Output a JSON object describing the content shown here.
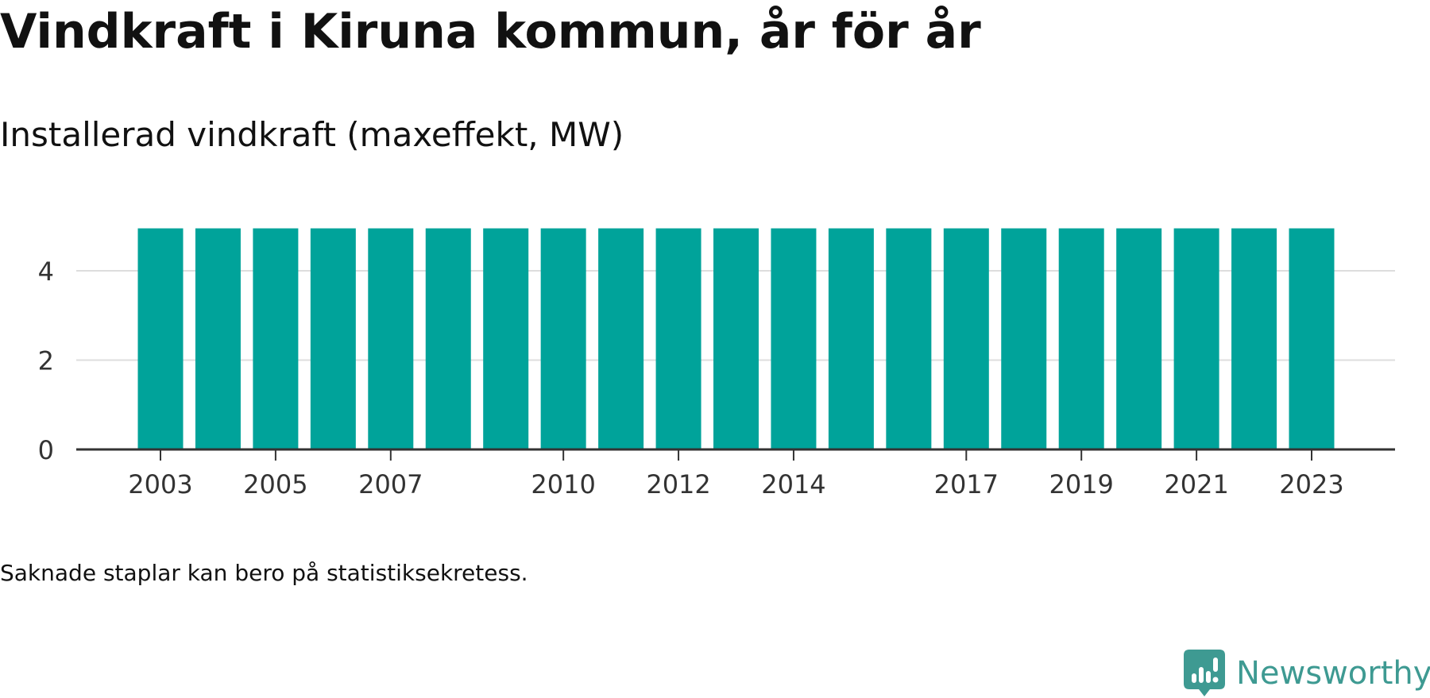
{
  "title": "Vindkraft i Kiruna kommun, år för år",
  "subtitle": "Installerad vindkraft (maxeffekt, MW)",
  "footnote": "Saknade staplar kan bero på statistiksekretess.",
  "brand": {
    "name": "Newsworthy",
    "icon": "newsworthy-logo-icon",
    "color": "#3e9a92"
  },
  "chart_data": {
    "type": "bar",
    "title": "Installerad vindkraft (maxeffekt, MW)",
    "xlabel": "",
    "ylabel": "",
    "categories": [
      2003,
      2004,
      2005,
      2006,
      2007,
      2008,
      2009,
      2010,
      2011,
      2012,
      2013,
      2014,
      2015,
      2016,
      2017,
      2018,
      2019,
      2020,
      2021,
      2022,
      2023
    ],
    "values": [
      4.95,
      4.95,
      4.95,
      4.95,
      4.95,
      4.95,
      4.95,
      4.95,
      4.95,
      4.95,
      4.95,
      4.95,
      4.95,
      4.95,
      4.95,
      4.95,
      4.95,
      4.95,
      4.95,
      4.95,
      4.95
    ],
    "x_tick_labels": [
      "2003",
      "2005",
      "2007",
      "2010",
      "2012",
      "2014",
      "2017",
      "2019",
      "2021",
      "2023"
    ],
    "y_ticks": [
      0,
      2,
      4
    ],
    "ylim": [
      0,
      5
    ],
    "grid": "horizontal",
    "legend": "none",
    "bar_color": "#00a39a",
    "gridline_color": "#dddddd",
    "axis_color": "#333333"
  }
}
